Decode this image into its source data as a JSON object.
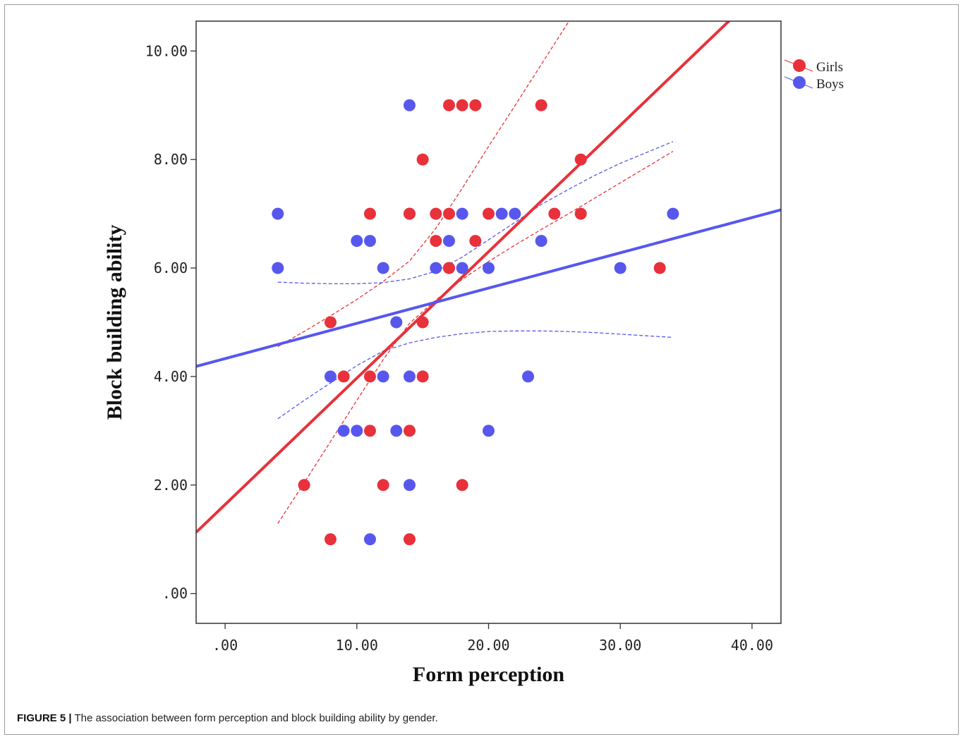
{
  "caption": {
    "label": "FIGURE 5 |",
    "text": "The association between form perception and block building ability by gender."
  },
  "chart_data": {
    "type": "scatter",
    "title": "",
    "xlabel": "Form perception",
    "ylabel": "Block building ability",
    "xlim": [
      -2.2,
      42.2
    ],
    "ylim": [
      -0.55,
      10.55
    ],
    "xticks": [
      0,
      10,
      20,
      30,
      40
    ],
    "xtick_labels": [
      ".00",
      "10.00",
      "20.00",
      "30.00",
      "40.00"
    ],
    "yticks": [
      0,
      2,
      4,
      6,
      8,
      10
    ],
    "ytick_labels": [
      ".00",
      "2.00",
      "4.00",
      "6.00",
      "8.00",
      "10.00"
    ],
    "grid": false,
    "legend_position": "top-right",
    "series": [
      {
        "name": "Girls",
        "color": "#e8313a",
        "points": [
          [
            17,
            9
          ],
          [
            18,
            9
          ],
          [
            19,
            9
          ],
          [
            24,
            9
          ],
          [
            15,
            8
          ],
          [
            27,
            8
          ],
          [
            11,
            7
          ],
          [
            14,
            7
          ],
          [
            16,
            7
          ],
          [
            17,
            7
          ],
          [
            20,
            7
          ],
          [
            25,
            7
          ],
          [
            27,
            7
          ],
          [
            16,
            6.5
          ],
          [
            19,
            6.5
          ],
          [
            17,
            6
          ],
          [
            33,
            6
          ],
          [
            8,
            5
          ],
          [
            15,
            5
          ],
          [
            9,
            4
          ],
          [
            11,
            4
          ],
          [
            15,
            4
          ],
          [
            11,
            3
          ],
          [
            14,
            3
          ],
          [
            6,
            2
          ],
          [
            12,
            2
          ],
          [
            18,
            2
          ],
          [
            8,
            1
          ],
          [
            14,
            1
          ]
        ],
        "fit": {
          "intercept": 1.64,
          "slope": 0.233
        },
        "ci_x": [
          4,
          6,
          8,
          10,
          12,
          14,
          16,
          18,
          20,
          22,
          24,
          26,
          28,
          30,
          32,
          34
        ],
        "ci_upper": [
          4.55,
          4.83,
          5.12,
          5.42,
          5.75,
          6.13,
          6.73,
          7.47,
          8.24,
          8.99,
          9.75,
          10.51,
          11.27,
          12.03,
          12.79,
          13.55
        ],
        "ci_lower": [
          1.29,
          2.04,
          2.8,
          3.56,
          4.31,
          4.98,
          5.41,
          5.79,
          6.12,
          6.42,
          6.71,
          6.99,
          7.28,
          7.57,
          7.86,
          8.15
        ]
      },
      {
        "name": "Boys",
        "color": "#5757ee",
        "points": [
          [
            14,
            9
          ],
          [
            4,
            7
          ],
          [
            14,
            7
          ],
          [
            18,
            7
          ],
          [
            21,
            7
          ],
          [
            22,
            7
          ],
          [
            34,
            7
          ],
          [
            10,
            6.5
          ],
          [
            11,
            6.5
          ],
          [
            17,
            6.5
          ],
          [
            24,
            6.5
          ],
          [
            4,
            6
          ],
          [
            12,
            6
          ],
          [
            16,
            6
          ],
          [
            17,
            6
          ],
          [
            18,
            6
          ],
          [
            20,
            6
          ],
          [
            30,
            6
          ],
          [
            13,
            5
          ],
          [
            8,
            4
          ],
          [
            12,
            4
          ],
          [
            14,
            4
          ],
          [
            23,
            4
          ],
          [
            9,
            3
          ],
          [
            10,
            3
          ],
          [
            13,
            3
          ],
          [
            20,
            3
          ],
          [
            14,
            2
          ],
          [
            11,
            1
          ]
        ],
        "fit": {
          "intercept": 4.33,
          "slope": 0.065
        },
        "ci_x": [
          4,
          6,
          8,
          10,
          12,
          14,
          16,
          18,
          20,
          22,
          24,
          26,
          28,
          30,
          32,
          34
        ],
        "ci_upper": [
          5.74,
          5.72,
          5.71,
          5.71,
          5.73,
          5.8,
          5.94,
          6.2,
          6.52,
          6.84,
          7.17,
          7.44,
          7.7,
          7.93,
          8.13,
          8.33
        ],
        "ci_lower": [
          3.22,
          3.56,
          3.88,
          4.2,
          4.47,
          4.62,
          4.72,
          4.79,
          4.83,
          4.84,
          4.84,
          4.83,
          4.81,
          4.78,
          4.75,
          4.72
        ]
      }
    ]
  }
}
